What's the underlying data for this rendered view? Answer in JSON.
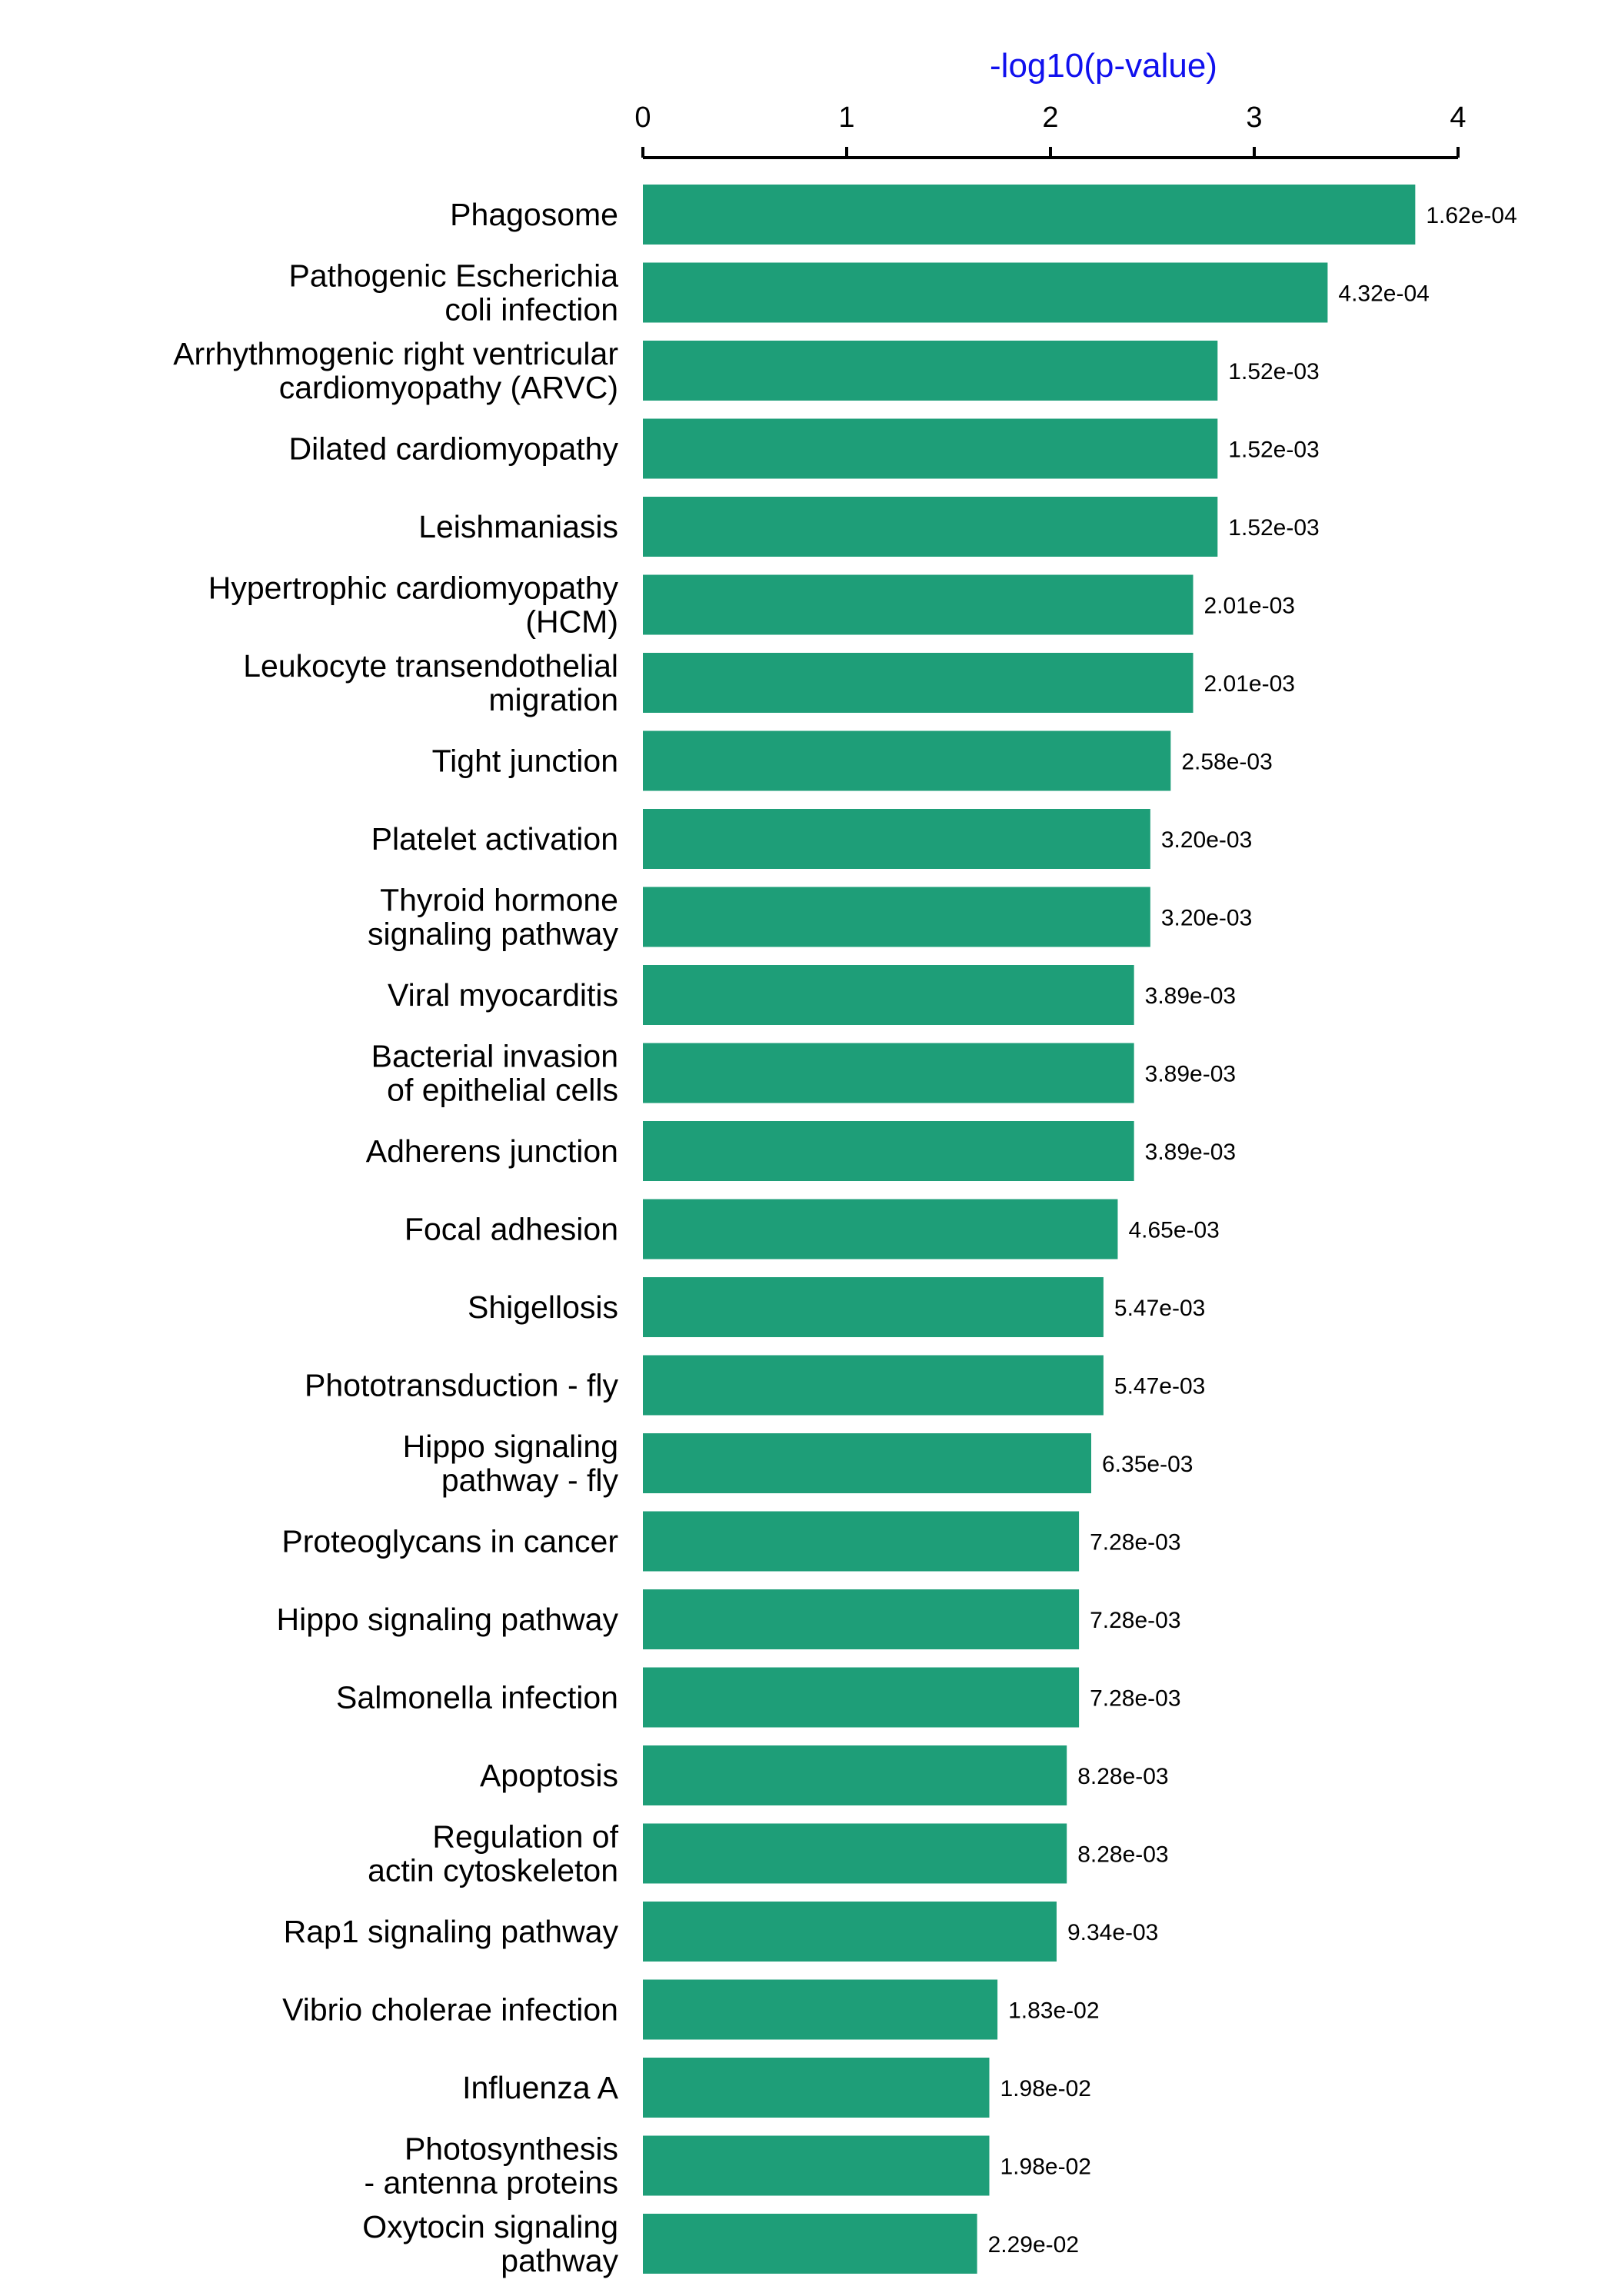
{
  "chart_data": {
    "type": "bar",
    "orientation": "horizontal",
    "xlabel": "-log10(p-value)",
    "xlim": [
      0,
      4
    ],
    "xticks": [
      "0",
      "1",
      "2",
      "3",
      "4"
    ],
    "grid": false,
    "colors": {
      "bar": "#1e9e78",
      "axis_title": "#1010ee",
      "axis": "#000000"
    },
    "categories": [
      "Phagosome",
      "Pathogenic Escherichia\ncoli infection",
      "Arrhythmogenic right ventricular\ncardiomyopathy (ARVC)",
      "Dilated cardiomyopathy",
      "Leishmaniasis",
      "Hypertrophic cardiomyopathy\n(HCM)",
      "Leukocyte transendothelial\nmigration",
      "Tight junction",
      "Platelet activation",
      "Thyroid hormone\nsignaling pathway",
      "Viral myocarditis",
      "Bacterial invasion\nof epithelial cells",
      "Adherens junction",
      "Focal adhesion",
      "Shigellosis",
      "Phototransduction - fly",
      "Hippo signaling\npathway - fly",
      "Proteoglycans in cancer",
      "Hippo signaling pathway",
      "Salmonella infection",
      "Apoptosis",
      "Regulation of\nactin cytoskeleton",
      "Rap1 signaling pathway",
      "Vibrio cholerae infection",
      "Influenza A",
      "Photosynthesis\n- antenna proteins",
      "Oxytocin signaling\npathway"
    ],
    "values": [
      3.79,
      3.36,
      2.82,
      2.82,
      2.82,
      2.7,
      2.7,
      2.59,
      2.49,
      2.49,
      2.41,
      2.41,
      2.41,
      2.33,
      2.26,
      2.26,
      2.2,
      2.14,
      2.14,
      2.14,
      2.08,
      2.08,
      2.03,
      1.74,
      1.7,
      1.7,
      1.64
    ],
    "value_labels": [
      "1.62e-04",
      "4.32e-04",
      "1.52e-03",
      "1.52e-03",
      "1.52e-03",
      "2.01e-03",
      "2.01e-03",
      "2.58e-03",
      "3.20e-03",
      "3.20e-03",
      "3.89e-03",
      "3.89e-03",
      "3.89e-03",
      "4.65e-03",
      "5.47e-03",
      "5.47e-03",
      "6.35e-03",
      "7.28e-03",
      "7.28e-03",
      "7.28e-03",
      "8.28e-03",
      "8.28e-03",
      "9.34e-03",
      "1.83e-02",
      "1.98e-02",
      "1.98e-02",
      "2.29e-02"
    ]
  }
}
